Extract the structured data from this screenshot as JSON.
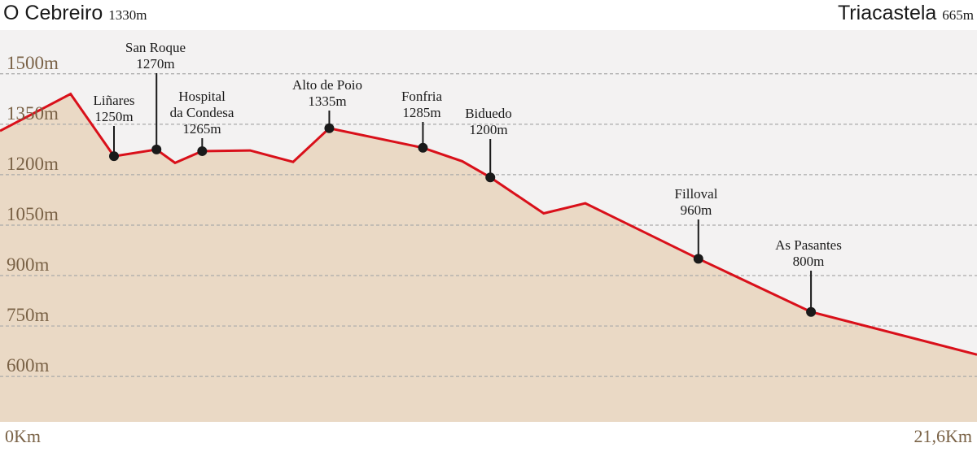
{
  "header": {
    "start_name": "O Cebreiro",
    "start_elev": "1330m",
    "end_name": "Triacastela",
    "end_elev": "665m"
  },
  "chart_data": {
    "type": "area",
    "title": "",
    "xlabel": "",
    "ylabel": "",
    "y_unit": "m",
    "x_unit": "Km",
    "xlim": [
      0,
      21.6
    ],
    "ylim": [
      465,
      1630
    ],
    "grid": true,
    "y_ticks": [
      1500,
      1350,
      1200,
      1050,
      900,
      750,
      600
    ],
    "y_tick_labels": [
      "1500m",
      "1350m",
      "1200m",
      "1050m",
      "900m",
      "750m",
      "600m"
    ],
    "x_tick_labels": [
      "0Km",
      "21,6Km"
    ],
    "series": [
      {
        "x": [
          0,
          1.56,
          2.52,
          3.46,
          3.87,
          4.47,
          5.53,
          6.48,
          7.28,
          9.35,
          10.22,
          10.84,
          12.02,
          12.94,
          15.44,
          17.93,
          21.6
        ],
        "y": [
          1330,
          1440,
          1255,
          1275,
          1235,
          1270,
          1272,
          1238,
          1338,
          1280,
          1240,
          1192,
          1085,
          1115,
          950,
          792,
          665
        ]
      }
    ],
    "waypoints": [
      {
        "name": "Liñares",
        "elev_label": "1250m",
        "x": 2.52,
        "y": 1255
      },
      {
        "name": "San Roque",
        "elev_label": "1270m",
        "x": 3.46,
        "y": 1275
      },
      {
        "name": "Hospital",
        "name2": "da Condesa",
        "elev_label": "1265m",
        "x": 4.47,
        "y": 1270
      },
      {
        "name": "Alto de Poio",
        "elev_label": "1335m",
        "x": 7.28,
        "y": 1338
      },
      {
        "name": "Fonfria",
        "elev_label": "1285m",
        "x": 9.35,
        "y": 1280
      },
      {
        "name": "Biduedo",
        "elev_label": "1200m",
        "x": 10.84,
        "y": 1192
      },
      {
        "name": "Filloval",
        "elev_label": "960m",
        "x": 15.44,
        "y": 950
      },
      {
        "name": "As Pasantes",
        "elev_label": "800m",
        "x": 17.93,
        "y": 792
      }
    ],
    "colors": {
      "profile_line": "#d9101a",
      "area_fill": "#ead9c5",
      "plot_background": "#f3f2f2",
      "grid": "#aaaaaa",
      "tick_text": "#7a6246",
      "marker": "#1a1a1a"
    }
  }
}
